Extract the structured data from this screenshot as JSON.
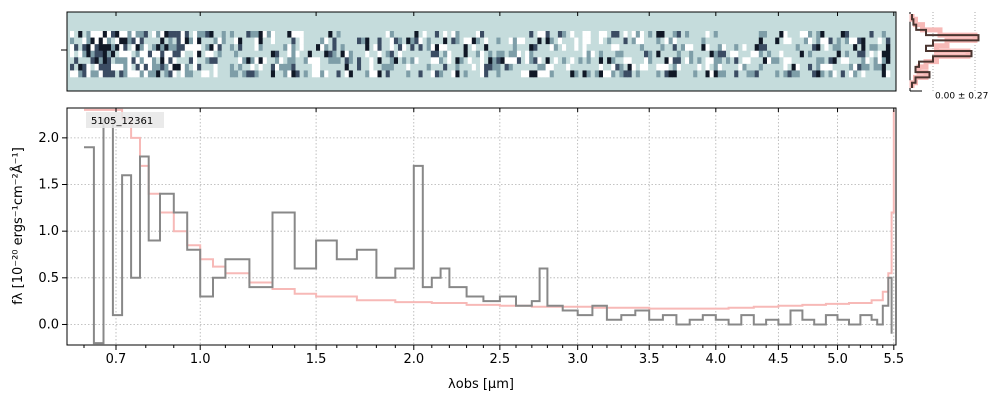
{
  "chart_data": [
    {
      "type": "heatmap",
      "panel": "2d-spectrum",
      "colormap": [
        "#ffffff",
        "#c5dcdc",
        "#7e9ea8",
        "#3b4c63",
        "#101826"
      ],
      "background_color": "#c5dcdc",
      "rows": 7,
      "columns": 200
    },
    {
      "type": "line",
      "panel": "1d-spectrum",
      "label": "5105_12361",
      "xlabel": "λobs [μm]",
      "ylabel": "fλ [10⁻²⁰ ergs⁻¹cm⁻²Å⁻¹]",
      "x_scale": "sqrt",
      "xlim": [
        0.55,
        5.52
      ],
      "ylim": [
        -0.22,
        2.32
      ],
      "x_ticks": [
        0.7,
        1.0,
        1.5,
        2.0,
        2.5,
        3.0,
        3.5,
        4.0,
        4.5,
        5.0,
        5.5
      ],
      "x_tick_labels": [
        "0.7",
        "1.0",
        "1.5",
        "2.0",
        "2.5",
        "3.0",
        "3.5",
        "4.0",
        "4.5",
        "5.0",
        "5.5"
      ],
      "y_ticks": [
        0.0,
        0.5,
        1.0,
        1.5,
        2.0
      ],
      "y_tick_labels": [
        "0.0",
        "0.5",
        "1.0",
        "1.5",
        "2.0"
      ],
      "grid": true,
      "series": [
        {
          "role": "flux",
          "color": "#888888",
          "x": [
            0.6,
            0.63,
            0.66,
            0.69,
            0.72,
            0.75,
            0.78,
            0.81,
            0.85,
            0.9,
            0.95,
            1.0,
            1.05,
            1.1,
            1.2,
            1.3,
            1.4,
            1.5,
            1.6,
            1.7,
            1.8,
            1.9,
            2.0,
            2.05,
            2.1,
            2.15,
            2.2,
            2.3,
            2.4,
            2.5,
            2.6,
            2.7,
            2.75,
            2.8,
            2.9,
            3.0,
            3.1,
            3.2,
            3.3,
            3.4,
            3.5,
            3.6,
            3.7,
            3.8,
            3.9,
            4.0,
            4.1,
            4.2,
            4.3,
            4.4,
            4.5,
            4.6,
            4.7,
            4.8,
            4.9,
            5.0,
            5.1,
            5.2,
            5.3,
            5.35,
            5.4,
            5.45,
            5.48
          ],
          "y": [
            1.9,
            -0.2,
            2.2,
            0.1,
            1.6,
            0.5,
            1.8,
            0.9,
            1.4,
            1.2,
            0.8,
            0.3,
            0.5,
            0.7,
            0.4,
            1.2,
            0.6,
            0.9,
            0.7,
            0.8,
            0.5,
            0.6,
            1.7,
            0.4,
            0.5,
            0.6,
            0.4,
            0.3,
            0.25,
            0.3,
            0.2,
            0.25,
            0.6,
            0.2,
            0.15,
            0.1,
            0.2,
            0.05,
            0.1,
            0.15,
            0.05,
            0.1,
            0.0,
            0.05,
            0.1,
            0.05,
            0.0,
            0.1,
            0.0,
            0.05,
            0.0,
            0.15,
            0.05,
            0.0,
            0.1,
            0.05,
            0.0,
            0.1,
            0.05,
            0.0,
            0.2,
            0.5,
            -0.1
          ]
        },
        {
          "role": "error",
          "color": "#f7b9b7",
          "x": [
            0.6,
            0.63,
            0.66,
            0.69,
            0.72,
            0.75,
            0.78,
            0.81,
            0.85,
            0.9,
            0.95,
            1.0,
            1.05,
            1.1,
            1.2,
            1.3,
            1.4,
            1.5,
            1.7,
            1.9,
            2.1,
            2.3,
            2.5,
            2.7,
            2.9,
            3.1,
            3.3,
            3.5,
            3.7,
            3.9,
            4.1,
            4.3,
            4.5,
            4.7,
            4.9,
            5.1,
            5.3,
            5.4,
            5.45,
            5.48,
            5.5
          ],
          "y": [
            2.3,
            2.3,
            2.3,
            2.3,
            2.2,
            2.0,
            1.7,
            1.4,
            1.2,
            1.0,
            0.85,
            0.7,
            0.62,
            0.55,
            0.45,
            0.38,
            0.33,
            0.3,
            0.26,
            0.24,
            0.23,
            0.21,
            0.2,
            0.19,
            0.19,
            0.18,
            0.18,
            0.17,
            0.17,
            0.17,
            0.18,
            0.19,
            0.2,
            0.21,
            0.22,
            0.23,
            0.26,
            0.35,
            0.55,
            1.2,
            2.3
          ]
        }
      ]
    },
    {
      "type": "line",
      "panel": "profile",
      "annotation": "0.00 ± 0.27",
      "series": [
        {
          "role": "profile",
          "color": "#4a3530",
          "x": [
            0.0,
            0.02,
            0.06,
            0.2,
            0.95,
            0.3,
            0.2,
            0.85,
            0.3,
            0.1,
            0.05,
            0.25,
            0.05,
            0.0
          ]
        },
        {
          "role": "profile-model",
          "color": "#f7b9b7",
          "x": [
            0.0,
            0.05,
            0.15,
            0.4,
            0.9,
            0.5,
            0.35,
            0.8,
            0.35,
            0.2,
            0.1,
            0.2,
            0.05,
            0.0
          ]
        }
      ]
    }
  ]
}
